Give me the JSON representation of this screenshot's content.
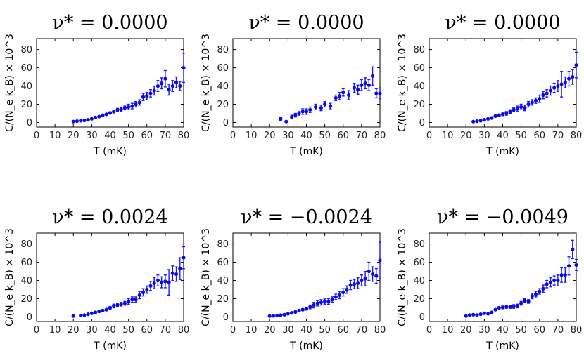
{
  "chart_data": [
    {
      "type": "scatter",
      "title": "ν* = 0.0000",
      "xlabel": "T (mK)",
      "ylabel": "C/(N_e k_B) × 10^3",
      "xlim": [
        0,
        80
      ],
      "ylim": [
        -5,
        92
      ],
      "xticks": [
        0,
        10,
        20,
        30,
        40,
        50,
        60,
        70,
        80
      ],
      "yticks": [
        0,
        20,
        40,
        60,
        80
      ],
      "points": [
        {
          "x": 20,
          "y": 1,
          "err": 0.5
        },
        {
          "x": 22,
          "y": 1.5,
          "err": 0.5
        },
        {
          "x": 24,
          "y": 2,
          "err": 0.5
        },
        {
          "x": 26,
          "y": 2.3,
          "err": 0.5
        },
        {
          "x": 28,
          "y": 3,
          "err": 0.5
        },
        {
          "x": 30,
          "y": 4,
          "err": 0.5
        },
        {
          "x": 32,
          "y": 5.5,
          "err": 0.6
        },
        {
          "x": 34,
          "y": 6.5,
          "err": 0.7
        },
        {
          "x": 36,
          "y": 8,
          "err": 1
        },
        {
          "x": 38,
          "y": 9,
          "err": 1
        },
        {
          "x": 40,
          "y": 10.5,
          "err": 1.2
        },
        {
          "x": 42,
          "y": 12,
          "err": 1.5
        },
        {
          "x": 44,
          "y": 14,
          "err": 1.5
        },
        {
          "x": 46,
          "y": 14.5,
          "err": 2
        },
        {
          "x": 48,
          "y": 16,
          "err": 2
        },
        {
          "x": 50,
          "y": 17,
          "err": 3
        },
        {
          "x": 52,
          "y": 18,
          "err": 3
        },
        {
          "x": 54,
          "y": 20,
          "err": 3
        },
        {
          "x": 56,
          "y": 22,
          "err": 3
        },
        {
          "x": 58,
          "y": 28,
          "err": 4
        },
        {
          "x": 60,
          "y": 29,
          "err": 4
        },
        {
          "x": 62,
          "y": 32,
          "err": 4
        },
        {
          "x": 64,
          "y": 35,
          "err": 5
        },
        {
          "x": 66,
          "y": 40,
          "err": 6
        },
        {
          "x": 68,
          "y": 43,
          "err": 6
        },
        {
          "x": 70,
          "y": 48,
          "err": 9
        },
        {
          "x": 72,
          "y": 36,
          "err": 6
        },
        {
          "x": 74,
          "y": 40,
          "err": 6
        },
        {
          "x": 76,
          "y": 44,
          "err": 6
        },
        {
          "x": 78,
          "y": 40,
          "err": 5
        },
        {
          "x": 80,
          "y": 60,
          "err": 16
        }
      ]
    },
    {
      "type": "scatter",
      "title": "ν* = 0.0000",
      "xlabel": "T (mK)",
      "ylabel": "C/(N_e k_B) × 10^3",
      "xlim": [
        0,
        80
      ],
      "ylim": [
        -5,
        92
      ],
      "xticks": [
        0,
        10,
        20,
        30,
        40,
        50,
        60,
        70,
        80
      ],
      "yticks": [
        0,
        20,
        40,
        60,
        80
      ],
      "points": [
        {
          "x": 26,
          "y": 4,
          "err": 1.5
        },
        {
          "x": 29,
          "y": 1,
          "err": 0.8
        },
        {
          "x": 32,
          "y": 6,
          "err": 2
        },
        {
          "x": 34,
          "y": 8,
          "err": 2
        },
        {
          "x": 36,
          "y": 10,
          "err": 2
        },
        {
          "x": 38,
          "y": 12,
          "err": 3
        },
        {
          "x": 40,
          "y": 12,
          "err": 3
        },
        {
          "x": 42,
          "y": 14,
          "err": 3
        },
        {
          "x": 45,
          "y": 17,
          "err": 3
        },
        {
          "x": 48,
          "y": 16,
          "err": 3
        },
        {
          "x": 50,
          "y": 20,
          "err": 3
        },
        {
          "x": 53,
          "y": 18,
          "err": 3
        },
        {
          "x": 56,
          "y": 27,
          "err": 3
        },
        {
          "x": 58,
          "y": 29,
          "err": 4
        },
        {
          "x": 60,
          "y": 33,
          "err": 4
        },
        {
          "x": 63,
          "y": 30,
          "err": 5
        },
        {
          "x": 66,
          "y": 38,
          "err": 5
        },
        {
          "x": 68,
          "y": 36,
          "err": 5
        },
        {
          "x": 70,
          "y": 41,
          "err": 6
        },
        {
          "x": 72,
          "y": 43,
          "err": 6
        },
        {
          "x": 74,
          "y": 41,
          "err": 6
        },
        {
          "x": 76,
          "y": 51,
          "err": 10
        },
        {
          "x": 78,
          "y": 32,
          "err": 5
        },
        {
          "x": 80,
          "y": 32,
          "err": 6
        }
      ]
    },
    {
      "type": "scatter",
      "title": "ν* = 0.0000",
      "xlabel": "T (mK)",
      "ylabel": "C/(N_e k_B) × 10^3",
      "xlim": [
        0,
        80
      ],
      "ylim": [
        -5,
        92
      ],
      "xticks": [
        0,
        10,
        20,
        30,
        40,
        50,
        60,
        70,
        80
      ],
      "yticks": [
        0,
        20,
        40,
        60,
        80
      ],
      "points": [
        {
          "x": 24,
          "y": 1,
          "err": 0.5
        },
        {
          "x": 26,
          "y": 1.5,
          "err": 0.5
        },
        {
          "x": 28,
          "y": 2,
          "err": 0.5
        },
        {
          "x": 30,
          "y": 3,
          "err": 0.6
        },
        {
          "x": 32,
          "y": 4,
          "err": 0.8
        },
        {
          "x": 34,
          "y": 5,
          "err": 1
        },
        {
          "x": 36,
          "y": 7,
          "err": 1
        },
        {
          "x": 38,
          "y": 8,
          "err": 1
        },
        {
          "x": 40,
          "y": 9,
          "err": 1.5
        },
        {
          "x": 42,
          "y": 10,
          "err": 2
        },
        {
          "x": 44,
          "y": 12,
          "err": 2
        },
        {
          "x": 46,
          "y": 14,
          "err": 2
        },
        {
          "x": 48,
          "y": 15,
          "err": 3
        },
        {
          "x": 50,
          "y": 17,
          "err": 3
        },
        {
          "x": 52,
          "y": 16,
          "err": 3
        },
        {
          "x": 54,
          "y": 20,
          "err": 3
        },
        {
          "x": 56,
          "y": 22,
          "err": 3
        },
        {
          "x": 58,
          "y": 24,
          "err": 3
        },
        {
          "x": 60,
          "y": 26,
          "err": 4
        },
        {
          "x": 62,
          "y": 30,
          "err": 4
        },
        {
          "x": 64,
          "y": 32,
          "err": 4
        },
        {
          "x": 66,
          "y": 35,
          "err": 5
        },
        {
          "x": 68,
          "y": 38,
          "err": 5
        },
        {
          "x": 70,
          "y": 40,
          "err": 6
        },
        {
          "x": 72,
          "y": 42,
          "err": 14
        },
        {
          "x": 74,
          "y": 44,
          "err": 6
        },
        {
          "x": 76,
          "y": 48,
          "err": 8
        },
        {
          "x": 78,
          "y": 50,
          "err": 8
        },
        {
          "x": 80,
          "y": 63,
          "err": 14
        }
      ]
    },
    {
      "type": "scatter",
      "title": "ν* = 0.0024",
      "xlabel": "T (mK)",
      "ylabel": "C/(N_e k_B) × 10^3",
      "xlim": [
        0,
        80
      ],
      "ylim": [
        -5,
        92
      ],
      "xticks": [
        0,
        10,
        20,
        30,
        40,
        50,
        60,
        70,
        80
      ],
      "yticks": [
        0,
        20,
        40,
        60,
        80
      ],
      "points": [
        {
          "x": 20,
          "y": 1,
          "err": 0.5
        },
        {
          "x": 24,
          "y": 1.5,
          "err": 0.5
        },
        {
          "x": 26,
          "y": 2,
          "err": 0.5
        },
        {
          "x": 28,
          "y": 3,
          "err": 0.5
        },
        {
          "x": 30,
          "y": 4,
          "err": 0.6
        },
        {
          "x": 32,
          "y": 5,
          "err": 0.8
        },
        {
          "x": 34,
          "y": 6,
          "err": 1
        },
        {
          "x": 36,
          "y": 7,
          "err": 1
        },
        {
          "x": 38,
          "y": 8,
          "err": 1
        },
        {
          "x": 40,
          "y": 10,
          "err": 1.5
        },
        {
          "x": 42,
          "y": 12,
          "err": 2
        },
        {
          "x": 44,
          "y": 13,
          "err": 2
        },
        {
          "x": 46,
          "y": 14,
          "err": 2
        },
        {
          "x": 48,
          "y": 15,
          "err": 2
        },
        {
          "x": 50,
          "y": 17,
          "err": 3
        },
        {
          "x": 52,
          "y": 19,
          "err": 3
        },
        {
          "x": 54,
          "y": 19,
          "err": 3
        },
        {
          "x": 56,
          "y": 24,
          "err": 4
        },
        {
          "x": 58,
          "y": 27,
          "err": 4
        },
        {
          "x": 60,
          "y": 30,
          "err": 4
        },
        {
          "x": 62,
          "y": 34,
          "err": 5
        },
        {
          "x": 64,
          "y": 37,
          "err": 6
        },
        {
          "x": 66,
          "y": 40,
          "err": 6
        },
        {
          "x": 68,
          "y": 38,
          "err": 6
        },
        {
          "x": 70,
          "y": 39,
          "err": 7
        },
        {
          "x": 72,
          "y": 38,
          "err": 14
        },
        {
          "x": 74,
          "y": 48,
          "err": 8
        },
        {
          "x": 76,
          "y": 47,
          "err": 8
        },
        {
          "x": 78,
          "y": 53,
          "err": 12
        },
        {
          "x": 80,
          "y": 65,
          "err": 12
        }
      ]
    },
    {
      "type": "scatter",
      "title": "ν* = −0.0024",
      "xlabel": "T (mK)",
      "ylabel": "C/(N_e k_B) × 10^3",
      "xlim": [
        0,
        80
      ],
      "ylim": [
        -5,
        92
      ],
      "xticks": [
        0,
        10,
        20,
        30,
        40,
        50,
        60,
        70,
        80
      ],
      "yticks": [
        0,
        20,
        40,
        60,
        80
      ],
      "points": [
        {
          "x": 20,
          "y": 1,
          "err": 0.5
        },
        {
          "x": 22,
          "y": 1.2,
          "err": 0.5
        },
        {
          "x": 24,
          "y": 1.5,
          "err": 0.5
        },
        {
          "x": 26,
          "y": 2,
          "err": 0.5
        },
        {
          "x": 28,
          "y": 2.5,
          "err": 0.5
        },
        {
          "x": 30,
          "y": 3.5,
          "err": 0.6
        },
        {
          "x": 32,
          "y": 4.5,
          "err": 0.8
        },
        {
          "x": 34,
          "y": 5.5,
          "err": 1
        },
        {
          "x": 36,
          "y": 7,
          "err": 1
        },
        {
          "x": 38,
          "y": 8,
          "err": 1
        },
        {
          "x": 40,
          "y": 9,
          "err": 1.5
        },
        {
          "x": 42,
          "y": 11,
          "err": 2
        },
        {
          "x": 44,
          "y": 13,
          "err": 3
        },
        {
          "x": 46,
          "y": 15,
          "err": 3
        },
        {
          "x": 48,
          "y": 16,
          "err": 3
        },
        {
          "x": 50,
          "y": 17,
          "err": 3
        },
        {
          "x": 52,
          "y": 17,
          "err": 3
        },
        {
          "x": 54,
          "y": 19,
          "err": 3
        },
        {
          "x": 56,
          "y": 22,
          "err": 3
        },
        {
          "x": 58,
          "y": 24,
          "err": 4
        },
        {
          "x": 60,
          "y": 27,
          "err": 4
        },
        {
          "x": 62,
          "y": 30,
          "err": 4
        },
        {
          "x": 64,
          "y": 35,
          "err": 5
        },
        {
          "x": 66,
          "y": 36,
          "err": 5
        },
        {
          "x": 68,
          "y": 37,
          "err": 6
        },
        {
          "x": 70,
          "y": 40,
          "err": 6
        },
        {
          "x": 72,
          "y": 42,
          "err": 8
        },
        {
          "x": 74,
          "y": 50,
          "err": 10
        },
        {
          "x": 76,
          "y": 47,
          "err": 8
        },
        {
          "x": 78,
          "y": 45,
          "err": 8
        },
        {
          "x": 80,
          "y": 62,
          "err": 20
        }
      ]
    },
    {
      "type": "scatter",
      "title": "ν* = −0.0049",
      "xlabel": "T (mK)",
      "ylabel": "C/(N_e k_B) × 10^3",
      "xlim": [
        0,
        80
      ],
      "ylim": [
        -5,
        92
      ],
      "xticks": [
        0,
        10,
        20,
        30,
        40,
        50,
        60,
        70,
        80
      ],
      "yticks": [
        0,
        20,
        40,
        60,
        80
      ],
      "points": [
        {
          "x": 20,
          "y": 1,
          "err": 0.5
        },
        {
          "x": 22,
          "y": 2,
          "err": 0.5
        },
        {
          "x": 24,
          "y": 2.5,
          "err": 0.5
        },
        {
          "x": 26,
          "y": 2,
          "err": 0.5
        },
        {
          "x": 28,
          "y": 3,
          "err": 0.5
        },
        {
          "x": 30,
          "y": 4,
          "err": 0.6
        },
        {
          "x": 32,
          "y": 3.5,
          "err": 0.6
        },
        {
          "x": 34,
          "y": 5,
          "err": 0.8
        },
        {
          "x": 36,
          "y": 8,
          "err": 1
        },
        {
          "x": 38,
          "y": 10,
          "err": 1
        },
        {
          "x": 40,
          "y": 10.5,
          "err": 1.5
        },
        {
          "x": 42,
          "y": 11,
          "err": 1.5
        },
        {
          "x": 44,
          "y": 11,
          "err": 1.5
        },
        {
          "x": 46,
          "y": 11.5,
          "err": 2
        },
        {
          "x": 48,
          "y": 12,
          "err": 2
        },
        {
          "x": 50,
          "y": 15,
          "err": 2
        },
        {
          "x": 52,
          "y": 18,
          "err": 2
        },
        {
          "x": 54,
          "y": 17,
          "err": 2
        },
        {
          "x": 56,
          "y": 23,
          "err": 3
        },
        {
          "x": 58,
          "y": 25,
          "err": 3
        },
        {
          "x": 60,
          "y": 28,
          "err": 3
        },
        {
          "x": 62,
          "y": 31,
          "err": 4
        },
        {
          "x": 64,
          "y": 36,
          "err": 4
        },
        {
          "x": 66,
          "y": 38,
          "err": 5
        },
        {
          "x": 68,
          "y": 40,
          "err": 5
        },
        {
          "x": 70,
          "y": 40,
          "err": 6
        },
        {
          "x": 72,
          "y": 46,
          "err": 8
        },
        {
          "x": 74,
          "y": 46,
          "err": 8
        },
        {
          "x": 76,
          "y": 56,
          "err": 10
        },
        {
          "x": 78,
          "y": 74,
          "err": 10
        },
        {
          "x": 80,
          "y": 57,
          "err": 6
        }
      ]
    }
  ]
}
